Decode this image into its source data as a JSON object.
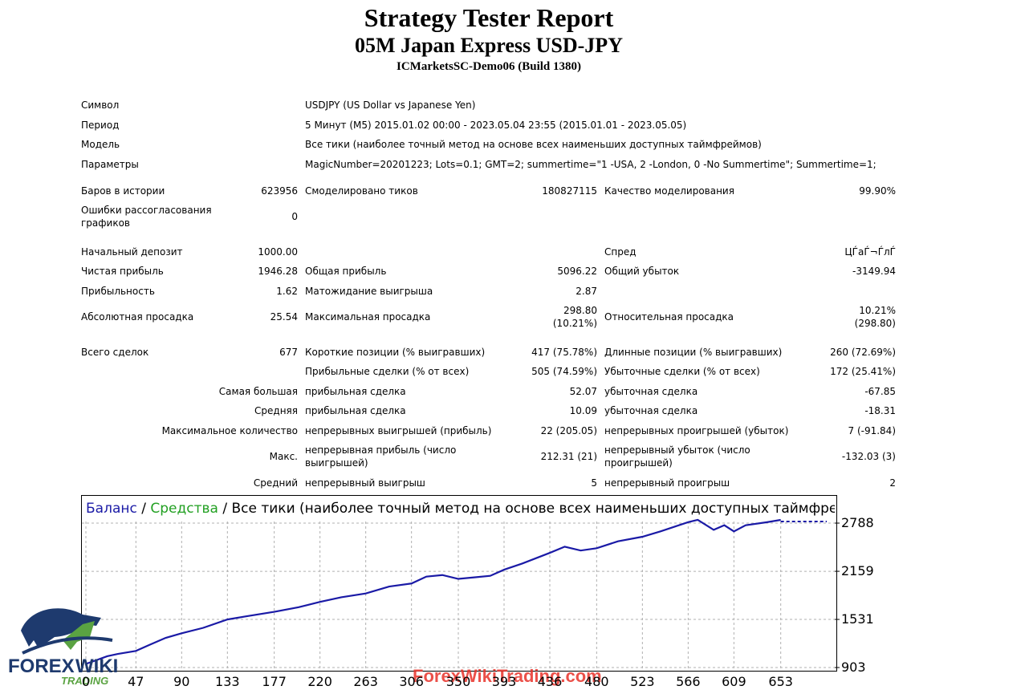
{
  "report": {
    "title": "Strategy Tester Report",
    "subtitle": "05M Japan Express USD-JPY",
    "server": "ICMarketsSC-Demo06 (Build 1380)"
  },
  "info": {
    "symbol_label": "Символ",
    "symbol_value": "USDJPY (US Dollar vs Japanese Yen)",
    "period_label": "Период",
    "period_value": "5 Минут (M5) 2015.01.02 00:00 - 2023.05.04 23:55 (2015.01.01 - 2023.05.05)",
    "model_label": "Модель",
    "model_value": "Все тики (наиболее точный метод на основе всех наименьших доступных таймфреймов)",
    "params_label": "Параметры",
    "params_value": "MagicNumber=20201223; Lots=0.1; GMT=2; summertime=\"1 -USA, 2 -London, 0 -No Summertime\"; Summertime=1;"
  },
  "stats": {
    "bars_label": "Баров в истории",
    "bars_value": "623956",
    "ticks_label": "Смоделировано тиков",
    "ticks_value": "180827115",
    "quality_label": "Качество моделирования",
    "quality_value": "99.90%",
    "errors_label": "Ошибки рассогласования графиков",
    "errors_value": "0",
    "deposit_label": "Начальный депозит",
    "deposit_value": "1000.00",
    "spread_label": "Спред",
    "spread_value": "ЦЃаЃ¬ЃлЃ",
    "net_label": "Чистая прибыль",
    "net_value": "1946.28",
    "gross_profit_label": "Общая прибыль",
    "gross_profit_value": "5096.22",
    "gross_loss_label": "Общий убыток",
    "gross_loss_value": "-3149.94",
    "pf_label": "Прибыльность",
    "pf_value": "1.62",
    "payoff_label": "Матожидание выигрыша",
    "payoff_value": "2.87",
    "abs_dd_label": "Абсолютная просадка",
    "abs_dd_value": "25.54",
    "max_dd_label": "Максимальная просадка",
    "max_dd_value_1": "298.80",
    "max_dd_value_2": "(10.21%)",
    "rel_dd_label": "Относительная просадка",
    "rel_dd_value_1": "10.21%",
    "rel_dd_value_2": "(298.80)",
    "trades_label": "Всего сделок",
    "trades_value": "677",
    "short_label": "Короткие позиции (% выигравших)",
    "short_value": "417 (75.78%)",
    "long_label": "Длинные позиции (% выигравших)",
    "long_value": "260 (72.69%)",
    "win_trades_label": "Прибыльные сделки (% от всех)",
    "win_trades_value": "505 (74.59%)",
    "loss_trades_label": "Убыточные сделки (% от всех)",
    "loss_trades_value": "172 (25.41%)",
    "largest_label": "Самая большая",
    "largest_win_label": "прибыльная сделка",
    "largest_win_value": "52.07",
    "largest_loss_label": "убыточная сделка",
    "largest_loss_value": "-67.85",
    "avg_label": "Средняя",
    "avg_win_label": "прибыльная сделка",
    "avg_win_value": "10.09",
    "avg_loss_label": "убыточная сделка",
    "avg_loss_value": "-18.31",
    "maxcount_label": "Максимальное количество",
    "maxcount_win_label": "непрерывных выигрышей (прибыль)",
    "maxcount_win_value": "22 (205.05)",
    "maxcount_loss_label": "непрерывных проигрышей (убыток)",
    "maxcount_loss_value": "7 (-91.84)",
    "max_label": "Макс.",
    "max_win_label": "непрерывная прибыль (число выигрышей)",
    "max_win_value": "212.31 (21)",
    "max_loss_label": "непрерывный убыток (число проигрышей)",
    "max_loss_value": "-132.03 (3)",
    "avgc_label": "Средний",
    "avgc_win_label": "непрерывный выигрыш",
    "avgc_win_value": "5",
    "avgc_loss_label": "непрерывный проигрыш",
    "avgc_loss_value": "2"
  },
  "chart_legend": {
    "balance": "Баланс",
    "sep1": " / ",
    "equity": "Средства",
    "sep2": " / ",
    "rest": "Все тики (наиболее точный метод на основе всех наименьших доступных таймфреймов для к"
  },
  "chart_data": {
    "type": "line",
    "series": [
      {
        "name": "Баланс",
        "color": "#1a1aa6",
        "x": [
          0,
          10,
          20,
          30,
          47,
          60,
          75,
          90,
          110,
          133,
          150,
          177,
          200,
          220,
          240,
          263,
          285,
          306,
          320,
          335,
          350,
          365,
          380,
          393,
          410,
          436,
          450,
          465,
          480,
          500,
          523,
          540,
          566,
          575,
          590,
          600,
          609,
          620,
          640,
          653
        ],
        "y": [
          950,
          1000,
          1050,
          1080,
          1120,
          1200,
          1290,
          1350,
          1420,
          1530,
          1570,
          1630,
          1690,
          1760,
          1820,
          1870,
          1960,
          2000,
          2090,
          2110,
          2060,
          2080,
          2100,
          2180,
          2260,
          2400,
          2480,
          2430,
          2460,
          2550,
          2610,
          2680,
          2800,
          2830,
          2700,
          2760,
          2680,
          2760,
          2800,
          2830
        ]
      }
    ],
    "x_ticks": [
      0,
      47,
      90,
      133,
      177,
      220,
      263,
      306,
      350,
      393,
      436,
      480,
      523,
      566,
      609,
      653
    ],
    "y_ticks": [
      903,
      1531,
      2159,
      2788
    ],
    "xlim": [
      0,
      700
    ],
    "ylim": [
      903,
      3000
    ],
    "grid": true
  },
  "watermark": "ForexWikiTrading.com",
  "logo": {
    "line1": "FOREX",
    "line2": "WIKI",
    "line3": "TRADING"
  },
  "colors": {
    "balance": "#1a1aa6",
    "equity": "#22a022",
    "grid": "#b0b0b0"
  }
}
